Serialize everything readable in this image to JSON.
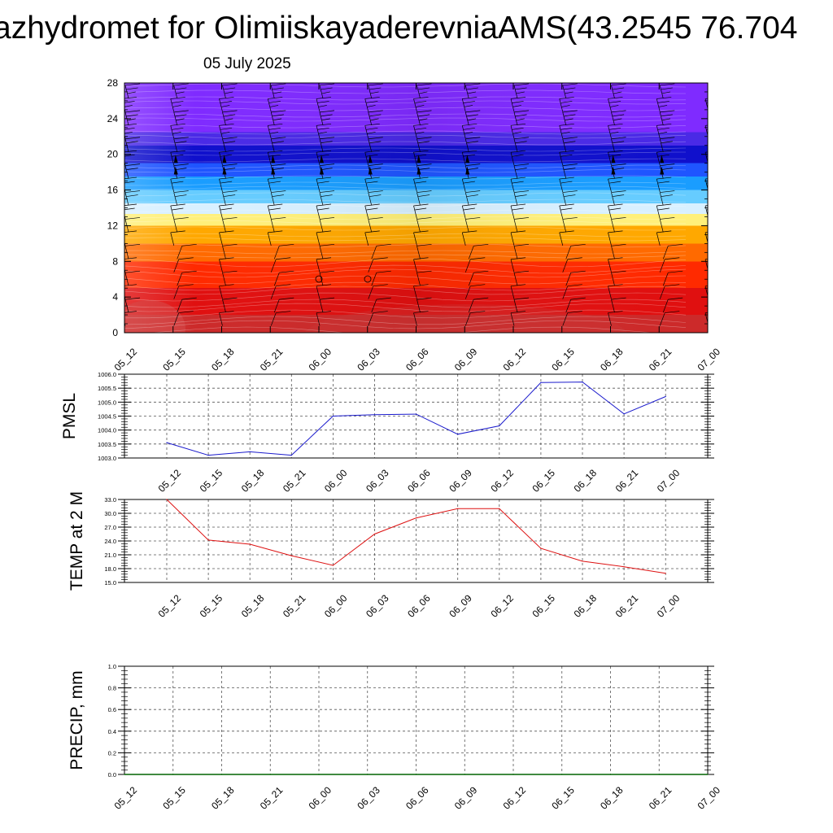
{
  "page": {
    "title": "azhydromet for OlimiiskayaderevniaAMS(43.2545 76.704",
    "subtitle": "05 July 2025"
  },
  "colors": {
    "pmsl_line": "#1a1acc",
    "temp_line": "#dd1111",
    "precip_line": "#006400",
    "grid": "#555555"
  },
  "chart_data": [
    {
      "type": "heatmap",
      "name": "cross-section",
      "x": [
        "05_12",
        "05_15",
        "05_18",
        "05_21",
        "06_00",
        "06_03",
        "06_06",
        "06_09",
        "06_12",
        "06_15",
        "06_18",
        "06_21",
        "07_00"
      ],
      "ylim": [
        0,
        28
      ],
      "yticks": [
        0,
        4,
        8,
        12,
        16,
        20,
        24,
        28
      ],
      "ylabel": "",
      "color_bands": [
        {
          "from": 0,
          "to": 2,
          "color": "#cc2a2a"
        },
        {
          "from": 2,
          "to": 5,
          "color": "#e01010"
        },
        {
          "from": 5,
          "to": 8,
          "color": "#ff2a00"
        },
        {
          "from": 8,
          "to": 10,
          "color": "#ff6a00"
        },
        {
          "from": 10,
          "to": 12,
          "color": "#ffa800"
        },
        {
          "from": 12,
          "to": 13.3,
          "color": "#fff07a"
        },
        {
          "from": 13.3,
          "to": 14.5,
          "color": "#d8f0ff"
        },
        {
          "from": 14.5,
          "to": 16,
          "color": "#66ccff"
        },
        {
          "from": 16,
          "to": 17.5,
          "color": "#1a9dff"
        },
        {
          "from": 17.5,
          "to": 19,
          "color": "#1f55ff"
        },
        {
          "from": 19,
          "to": 21,
          "color": "#1010cc"
        },
        {
          "from": 21,
          "to": 22.5,
          "color": "#4a2ae6"
        },
        {
          "from": 22.5,
          "to": 28,
          "color": "#7f2bff"
        }
      ]
    },
    {
      "type": "line",
      "name": "pmsl",
      "x": [
        "05_12",
        "05_15",
        "05_18",
        "05_21",
        "06_00",
        "06_03",
        "06_06",
        "06_09",
        "06_12",
        "06_15",
        "06_18",
        "06_21",
        "07_00"
      ],
      "ylabel": "PMSL",
      "ylim": [
        1003.0,
        1006.0
      ],
      "yticks": [
        "1003.0",
        "1003.5",
        "1004.0",
        "1004.5",
        "1005.0",
        "1005.5",
        "1006.0"
      ],
      "values": [
        1003.55,
        1003.1,
        1003.22,
        1003.1,
        1004.5,
        1004.55,
        1004.57,
        1003.85,
        1004.15,
        1005.7,
        1005.72,
        1004.58,
        1005.2
      ]
    },
    {
      "type": "line",
      "name": "temp2m",
      "x": [
        "05_12",
        "05_15",
        "05_18",
        "05_21",
        "06_00",
        "06_03",
        "06_06",
        "06_09",
        "06_12",
        "06_15",
        "06_18",
        "06_21",
        "07_00"
      ],
      "ylabel": "TEMP at 2 M",
      "ylim": [
        15.0,
        33.0
      ],
      "yticks": [
        "15.0",
        "18.0",
        "21.0",
        "24.0",
        "27.0",
        "30.0",
        "33.0"
      ],
      "values": [
        33.0,
        24.2,
        23.3,
        20.8,
        18.7,
        25.5,
        29.0,
        31.0,
        31.0,
        22.4,
        19.6,
        18.4,
        17.0
      ]
    },
    {
      "type": "line",
      "name": "precip",
      "x": [
        "05_12",
        "05_15",
        "05_18",
        "05_21",
        "06_00",
        "06_03",
        "06_06",
        "06_09",
        "06_12",
        "06_15",
        "06_18",
        "06_21",
        "07_00"
      ],
      "ylabel": "PRECIP, mm",
      "ylim": [
        0.0,
        1.0
      ],
      "yticks": [
        "0.0",
        "0.2",
        "0.4",
        "0.6",
        "0.8",
        "1.0"
      ],
      "values": [
        0,
        0,
        0,
        0,
        0,
        0,
        0,
        0,
        0,
        0,
        0,
        0,
        0
      ]
    }
  ]
}
